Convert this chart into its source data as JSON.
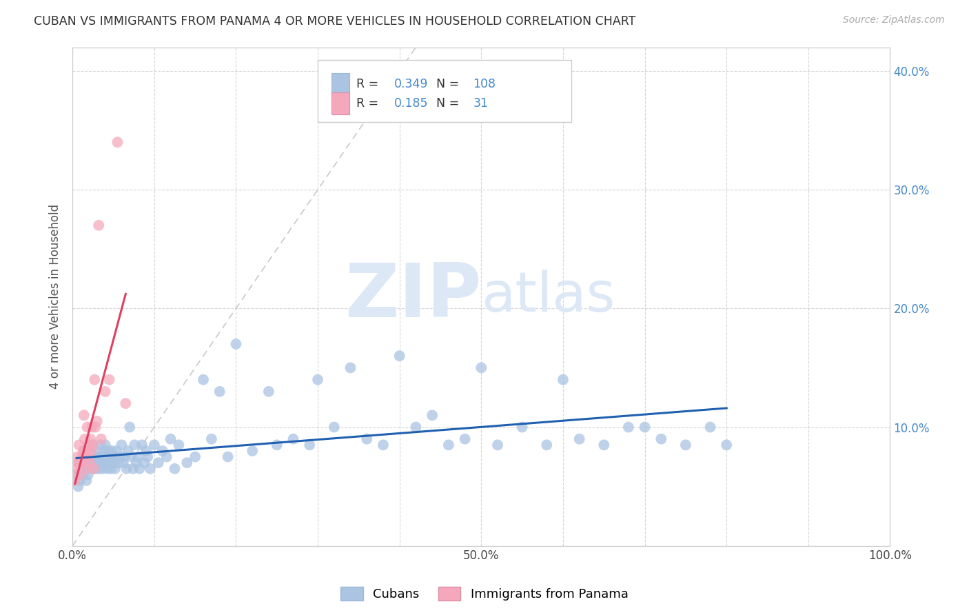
{
  "title": "CUBAN VS IMMIGRANTS FROM PANAMA 4 OR MORE VEHICLES IN HOUSEHOLD CORRELATION CHART",
  "source": "Source: ZipAtlas.com",
  "ylabel": "4 or more Vehicles in Household",
  "xlim": [
    0,
    1.0
  ],
  "ylim": [
    0,
    0.42
  ],
  "xtick_positions": [
    0.0,
    0.1,
    0.2,
    0.3,
    0.4,
    0.5,
    0.6,
    0.7,
    0.8,
    0.9,
    1.0
  ],
  "xtick_labels": [
    "0.0%",
    "",
    "",
    "",
    "",
    "50.0%",
    "",
    "",
    "",
    "",
    "100.0%"
  ],
  "ytick_positions": [
    0.0,
    0.1,
    0.2,
    0.3,
    0.4
  ],
  "ytick_labels_right": [
    "",
    "10.0%",
    "20.0%",
    "30.0%",
    "40.0%"
  ],
  "legend_r_cuban": "0.349",
  "legend_n_cuban": "108",
  "legend_r_panama": "0.185",
  "legend_n_panama": "31",
  "cuban_color": "#aac4e2",
  "panama_color": "#f5a8bc",
  "cuban_line_color": "#2060b0",
  "panama_line_color": "#e04060",
  "diagonal_color": "#c8c8c8",
  "watermark_zip": "ZIP",
  "watermark_atlas": "atlas",
  "watermark_color": "#dce8f5",
  "legend_text_color": "#4488cc",
  "cuban_x": [
    0.005,
    0.007,
    0.008,
    0.009,
    0.01,
    0.011,
    0.012,
    0.013,
    0.014,
    0.015,
    0.016,
    0.017,
    0.018,
    0.019,
    0.02,
    0.021,
    0.022,
    0.023,
    0.024,
    0.025,
    0.026,
    0.027,
    0.028,
    0.029,
    0.03,
    0.031,
    0.032,
    0.033,
    0.034,
    0.035,
    0.036,
    0.037,
    0.038,
    0.039,
    0.04,
    0.041,
    0.042,
    0.043,
    0.044,
    0.045,
    0.046,
    0.047,
    0.048,
    0.049,
    0.05,
    0.052,
    0.054,
    0.056,
    0.058,
    0.06,
    0.062,
    0.064,
    0.066,
    0.068,
    0.07,
    0.072,
    0.074,
    0.076,
    0.078,
    0.08,
    0.082,
    0.085,
    0.088,
    0.09,
    0.092,
    0.095,
    0.1,
    0.105,
    0.11,
    0.115,
    0.12,
    0.125,
    0.13,
    0.14,
    0.15,
    0.16,
    0.17,
    0.18,
    0.19,
    0.2,
    0.22,
    0.24,
    0.25,
    0.27,
    0.29,
    0.3,
    0.32,
    0.34,
    0.36,
    0.38,
    0.4,
    0.42,
    0.44,
    0.46,
    0.48,
    0.5,
    0.52,
    0.55,
    0.58,
    0.6,
    0.62,
    0.65,
    0.68,
    0.7,
    0.72,
    0.75,
    0.78,
    0.8
  ],
  "cuban_y": [
    0.06,
    0.05,
    0.07,
    0.055,
    0.065,
    0.07,
    0.075,
    0.06,
    0.08,
    0.07,
    0.065,
    0.055,
    0.075,
    0.06,
    0.07,
    0.065,
    0.08,
    0.07,
    0.075,
    0.085,
    0.065,
    0.07,
    0.075,
    0.065,
    0.08,
    0.07,
    0.075,
    0.065,
    0.085,
    0.07,
    0.075,
    0.065,
    0.07,
    0.08,
    0.085,
    0.07,
    0.075,
    0.065,
    0.08,
    0.07,
    0.075,
    0.065,
    0.08,
    0.07,
    0.075,
    0.065,
    0.08,
    0.07,
    0.075,
    0.085,
    0.07,
    0.075,
    0.065,
    0.08,
    0.1,
    0.075,
    0.065,
    0.085,
    0.07,
    0.075,
    0.065,
    0.085,
    0.07,
    0.08,
    0.075,
    0.065,
    0.085,
    0.07,
    0.08,
    0.075,
    0.09,
    0.065,
    0.085,
    0.07,
    0.075,
    0.14,
    0.09,
    0.13,
    0.075,
    0.17,
    0.08,
    0.13,
    0.085,
    0.09,
    0.085,
    0.14,
    0.1,
    0.15,
    0.09,
    0.085,
    0.16,
    0.1,
    0.11,
    0.085,
    0.09,
    0.15,
    0.085,
    0.1,
    0.085,
    0.14,
    0.09,
    0.085,
    0.1,
    0.1,
    0.09,
    0.085,
    0.1,
    0.085
  ],
  "panama_x": [
    0.003,
    0.005,
    0.006,
    0.007,
    0.008,
    0.009,
    0.01,
    0.012,
    0.013,
    0.014,
    0.015,
    0.016,
    0.017,
    0.018,
    0.019,
    0.02,
    0.021,
    0.022,
    0.023,
    0.024,
    0.025,
    0.026,
    0.027,
    0.028,
    0.03,
    0.032,
    0.035,
    0.04,
    0.045,
    0.055,
    0.065
  ],
  "panama_y": [
    0.055,
    0.065,
    0.075,
    0.07,
    0.085,
    0.06,
    0.07,
    0.075,
    0.08,
    0.11,
    0.09,
    0.08,
    0.065,
    0.1,
    0.075,
    0.085,
    0.07,
    0.09,
    0.08,
    0.1,
    0.085,
    0.065,
    0.14,
    0.1,
    0.105,
    0.27,
    0.09,
    0.13,
    0.14,
    0.34,
    0.12
  ]
}
